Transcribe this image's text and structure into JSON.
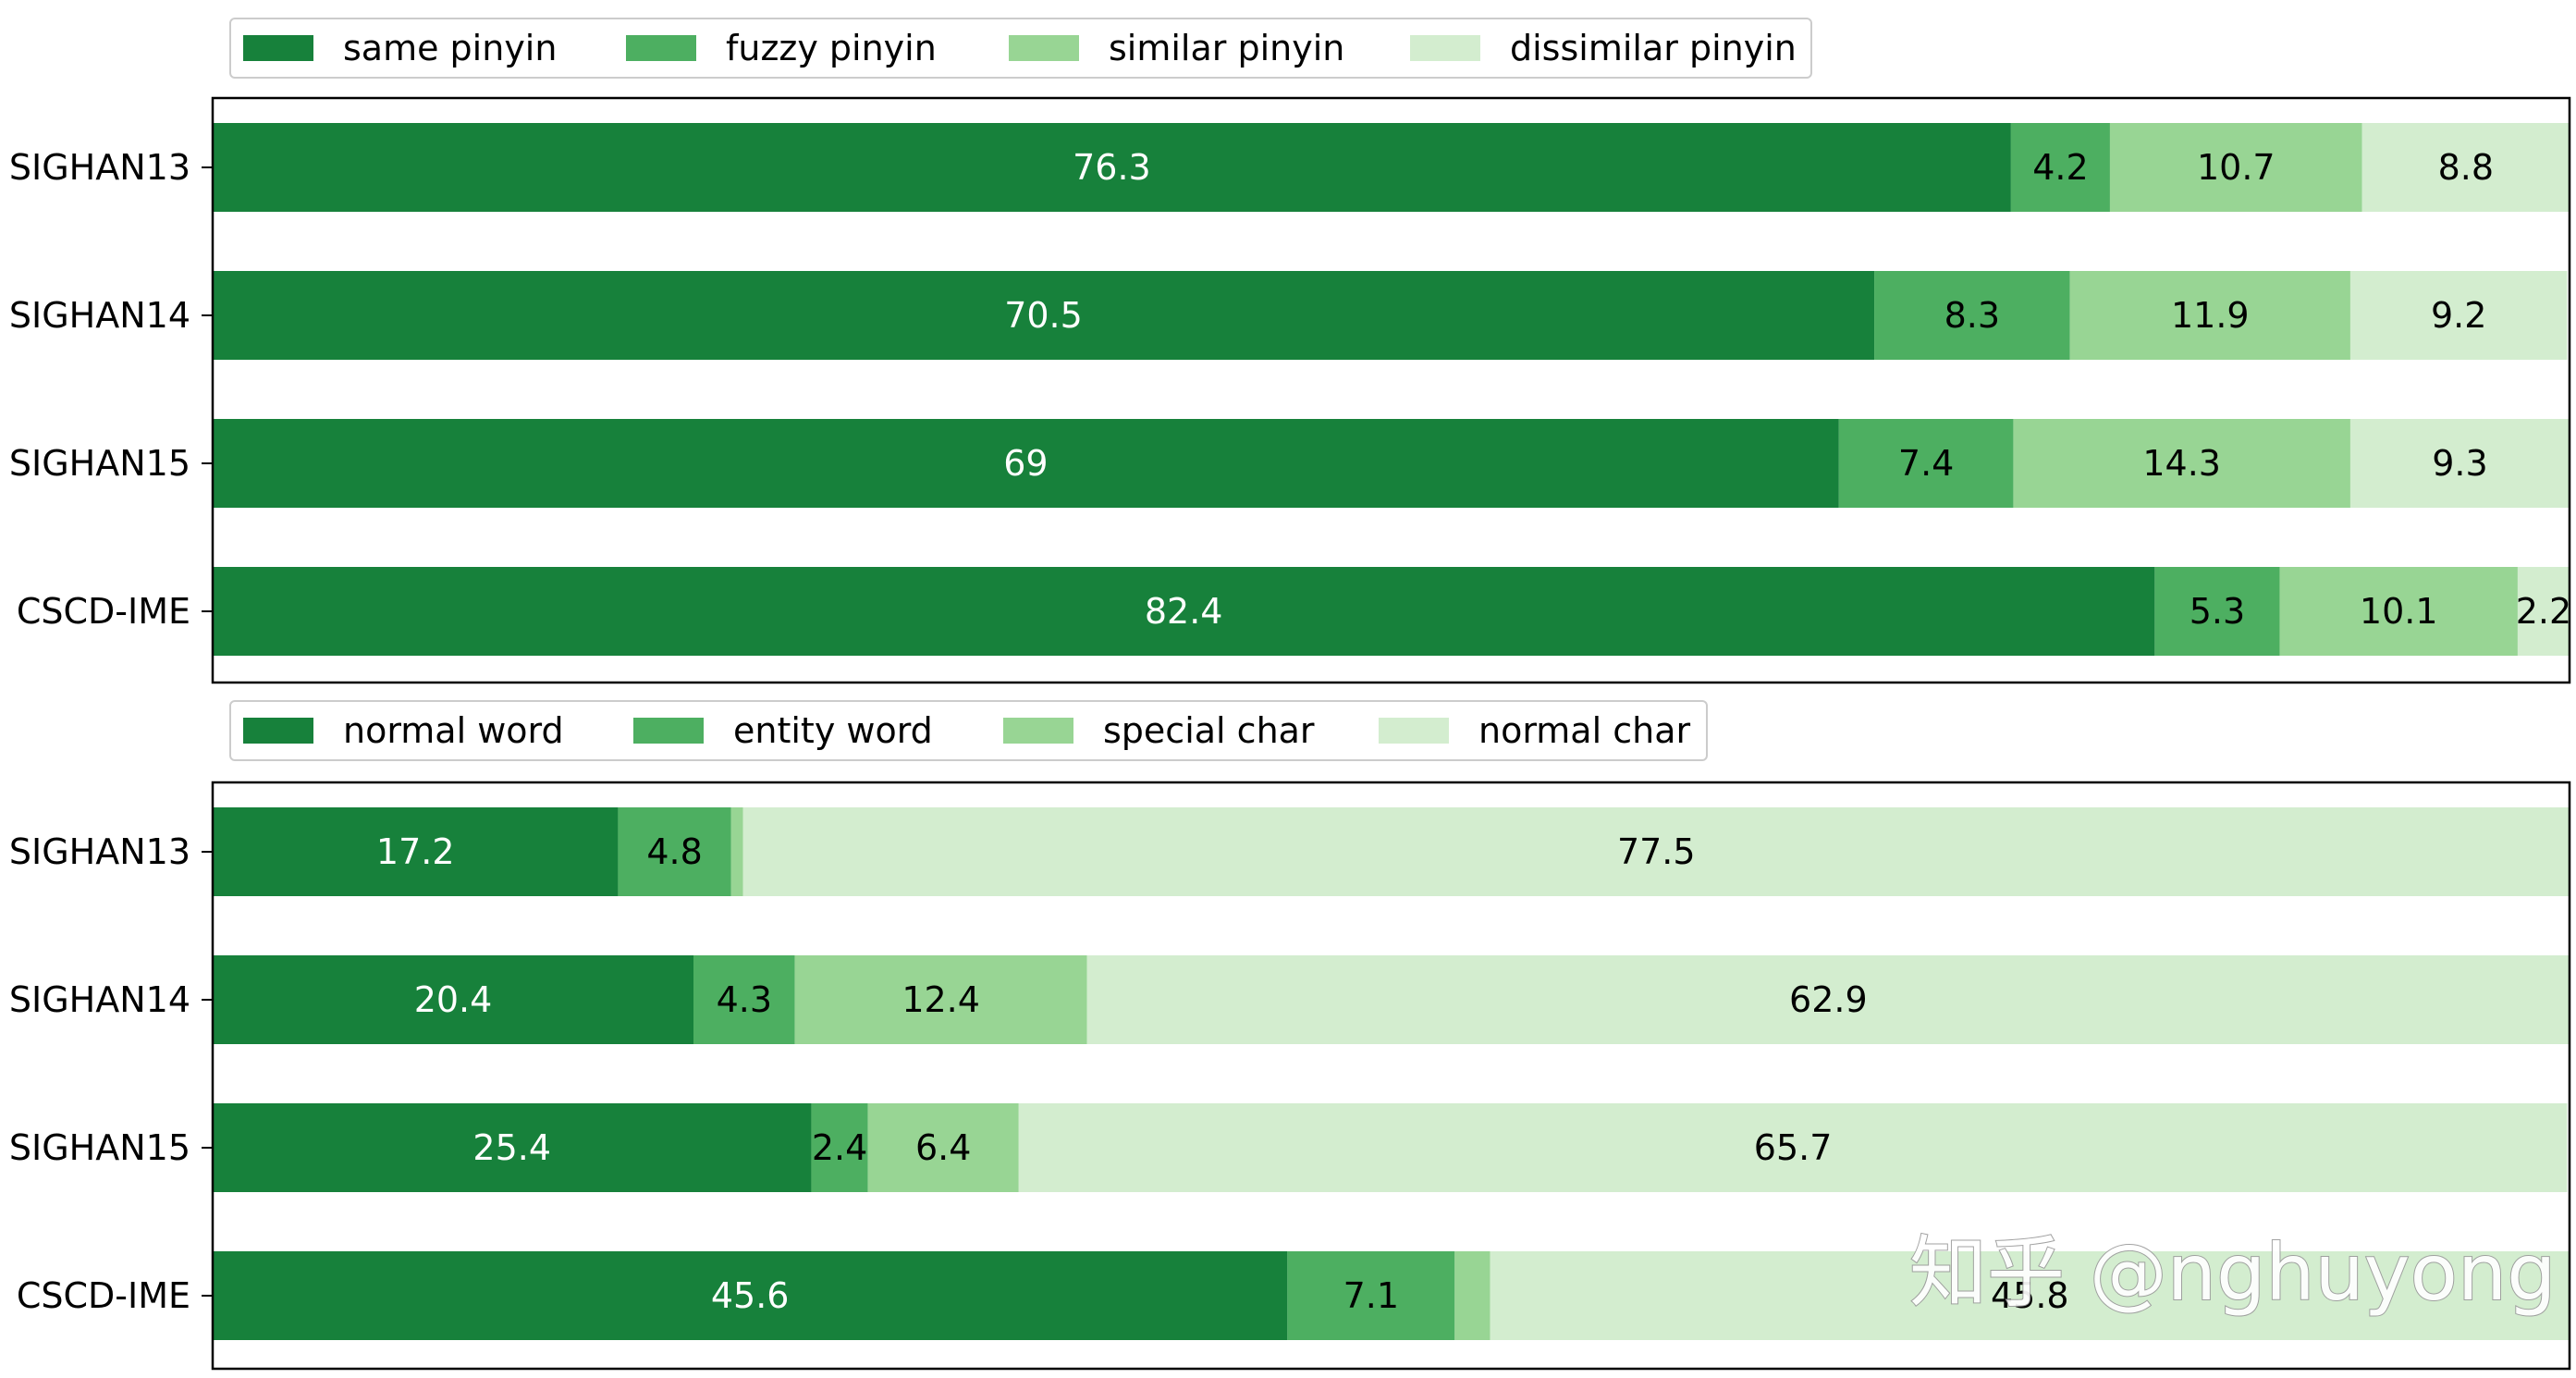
{
  "chart_data": [
    {
      "type": "bar",
      "orientation": "horizontal",
      "stacked": true,
      "categories": [
        "SIGHAN13",
        "SIGHAN14",
        "SIGHAN15",
        "CSCD-IME"
      ],
      "series": [
        {
          "name": "same pinyin",
          "values": [
            76.3,
            70.5,
            69,
            82.4
          ],
          "color": "#17813b"
        },
        {
          "name": "fuzzy pinyin",
          "values": [
            4.2,
            8.3,
            7.4,
            5.3
          ],
          "color": "#4daf61"
        },
        {
          "name": "similar pinyin",
          "values": [
            10.7,
            11.9,
            14.3,
            10.1
          ],
          "color": "#98d594"
        },
        {
          "name": "dissimilar pinyin",
          "values": [
            8.8,
            9.2,
            9.3,
            2.2
          ],
          "color": "#d3edcf"
        }
      ],
      "data_labels": [
        [
          "76.3",
          "4.2",
          "10.7",
          "8.8"
        ],
        [
          "70.5",
          "8.3",
          "11.9",
          "9.2"
        ],
        [
          "69",
          "7.4",
          "14.3",
          "9.3"
        ],
        [
          "82.4",
          "5.3",
          "10.1",
          "2.2"
        ]
      ],
      "label_colors": [
        "#ffffff",
        "#000000",
        "#000000",
        "#000000"
      ],
      "xlim": [
        0,
        100
      ],
      "legend_position": "top-left",
      "grid": false
    },
    {
      "type": "bar",
      "orientation": "horizontal",
      "stacked": true,
      "categories": [
        "SIGHAN13",
        "SIGHAN14",
        "SIGHAN15",
        "CSCD-IME"
      ],
      "series": [
        {
          "name": "normal word",
          "values": [
            17.2,
            20.4,
            25.4,
            45.6
          ],
          "color": "#17813b"
        },
        {
          "name": "entity word",
          "values": [
            4.8,
            4.3,
            2.4,
            7.1
          ],
          "color": "#4daf61"
        },
        {
          "name": "special char",
          "values": [
            0.5,
            12.4,
            6.4,
            1.5
          ],
          "color": "#98d594"
        },
        {
          "name": "normal char",
          "values": [
            77.5,
            62.9,
            65.7,
            45.8
          ],
          "color": "#d3edcf"
        }
      ],
      "data_labels": [
        [
          "17.2",
          "4.8",
          "",
          "77.5"
        ],
        [
          "20.4",
          "4.3",
          "12.4",
          "62.9"
        ],
        [
          "25.4",
          "2.4",
          "6.4",
          "65.7"
        ],
        [
          "45.6",
          "7.1",
          "",
          "45.8"
        ]
      ],
      "label_colors": [
        "#ffffff",
        "#000000",
        "#000000",
        "#000000"
      ],
      "xlim": [
        0,
        100
      ],
      "legend_position": "top-left",
      "grid": false
    }
  ],
  "watermark": {
    "text": "知乎 @nghuyong"
  }
}
